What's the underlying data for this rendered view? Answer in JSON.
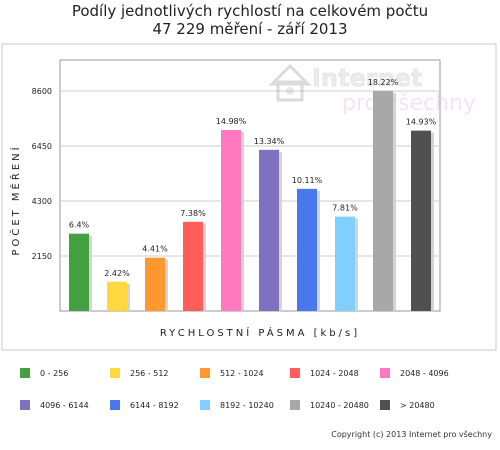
{
  "chart_data": {
    "type": "bar",
    "title": "Podíly jednotlivých rychlostí na celkovém počtu",
    "subtitle": "47 229 měření - září 2013",
    "xlabel": "RYCHLOSTNÍ PÁSMA [kb/s]",
    "ylabel": "POČET MĚŘENÍ",
    "ylim": [
      0,
      8600
    ],
    "yticks": [
      2150,
      4300,
      6450,
      8600
    ],
    "ytick_labels": [
      "2150",
      "4300",
      "6450",
      "8600"
    ],
    "grid": true,
    "categories": [
      "0 - 256",
      "256 - 512",
      "512 - 1024",
      "1024 - 2048",
      "2048 - 4096",
      "4096 - 6144",
      "6144 - 8192",
      "8192 - 10240",
      "10240 - 20480",
      "> 20480"
    ],
    "values": [
      3023,
      1143,
      2083,
      3485,
      7075,
      6300,
      4775,
      3689,
      8605,
      7051
    ],
    "labels": [
      "6.4%",
      "2.42%",
      "4.41%",
      "7.38%",
      "14.98%",
      "13.34%",
      "10.11%",
      "7.81%",
      "18.22%",
      "14.93%"
    ],
    "colors": [
      "#44a040",
      "#ffd840",
      "#ff9830",
      "#ff5c5c",
      "#ff78c0",
      "#8070c0",
      "#4878ec",
      "#80d0ff",
      "#a8a8a8",
      "#505050"
    ],
    "legend_position": "bottom"
  },
  "watermark": {
    "line1": "Internet",
    "line2": "pro všechny"
  },
  "copyright": "Copyright (c) 2013 Internet pro všechny"
}
